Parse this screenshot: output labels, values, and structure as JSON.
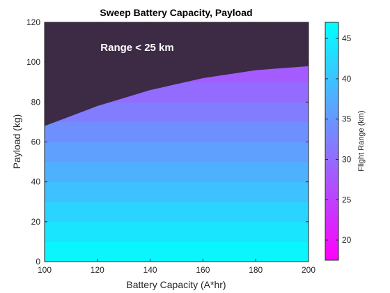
{
  "chart_data": {
    "type": "heatmap",
    "title": "Sweep Battery Capacity, Payload",
    "xlabel": "Battery Capacity (A*hr)",
    "ylabel": "Payload (kg)",
    "xlim": [
      100,
      200
    ],
    "ylim": [
      0,
      120
    ],
    "xticks": [
      "100",
      "120",
      "140",
      "160",
      "180",
      "200"
    ],
    "yticks": [
      "0",
      "20",
      "40",
      "60",
      "80",
      "100",
      "120"
    ],
    "x_edges": [
      100,
      120,
      140,
      160,
      180,
      200
    ],
    "y_edges": [
      0,
      10,
      20,
      30,
      40,
      50,
      60,
      70,
      80,
      90,
      100,
      110,
      120
    ],
    "row_values": [
      46,
      44,
      42,
      40,
      38,
      36,
      34,
      32,
      30,
      28,
      26,
      24
    ],
    "row_values_note": "Flight Range (km) by payload band, lowest payload first",
    "mask_boundary": {
      "x": [
        100,
        120,
        140,
        160,
        180,
        200
      ],
      "y": [
        68,
        78,
        86,
        92,
        96,
        98
      ]
    },
    "mask_color": "#3d2a45",
    "annotation": "Range < 25 km",
    "colorbar": {
      "label": "Flight Range (km)",
      "lim": [
        17.5,
        47
      ],
      "ticks": [
        "20",
        "25",
        "30",
        "35",
        "40",
        "45"
      ],
      "color_low": "#ff00ff",
      "color_high": "#00ffff"
    },
    "grid": false
  }
}
